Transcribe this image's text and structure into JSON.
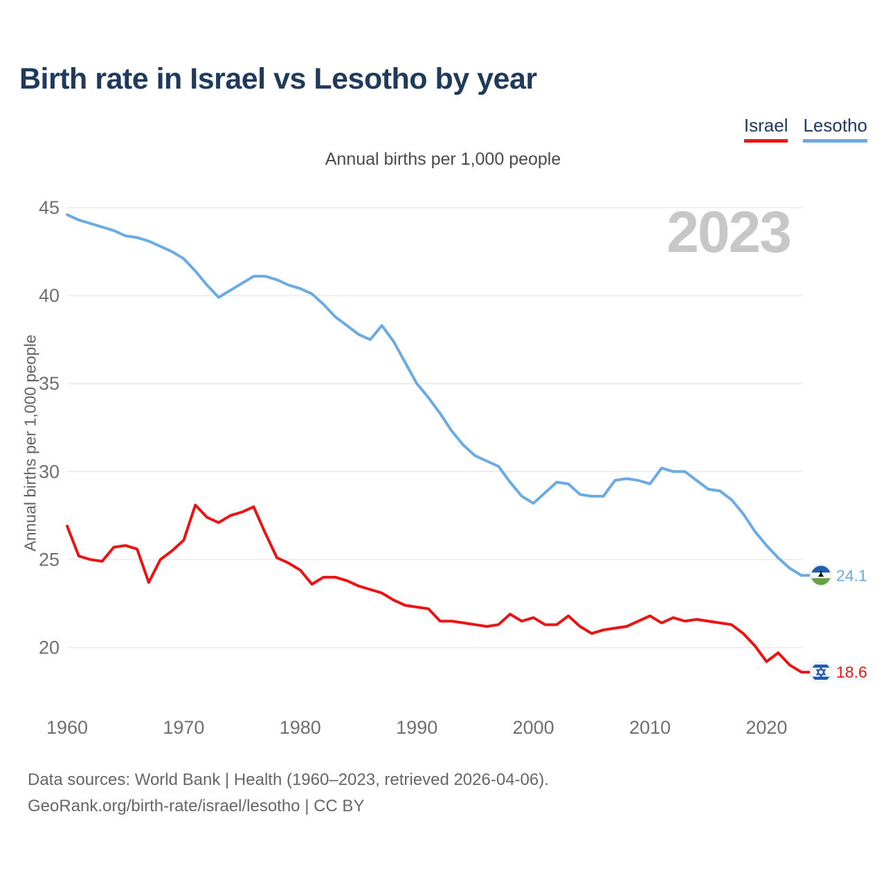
{
  "header": {
    "title": "Birth rate in Israel vs Lesotho by year"
  },
  "legend": {
    "items": [
      {
        "label": "Israel",
        "color": "#ec1313"
      },
      {
        "label": "Lesotho",
        "color": "#6aabe3"
      }
    ]
  },
  "subtitle": "Annual births per 1,000 people",
  "watermark": "2023",
  "chart_data": {
    "type": "line",
    "title": "Birth rate in Israel vs Lesotho by year",
    "xlabel": "",
    "ylabel": "Annual births per 1,000 people",
    "grid": "horizontal",
    "legend_position": "top-right",
    "yticks": [
      20,
      25,
      30,
      35,
      40,
      45
    ],
    "xticks": [
      1960,
      1970,
      1980,
      1990,
      2000,
      2010,
      2020
    ],
    "xlim": [
      1960,
      2023
    ],
    "ylim": [
      18,
      46
    ],
    "x": [
      1960,
      1961,
      1962,
      1963,
      1964,
      1965,
      1966,
      1967,
      1968,
      1969,
      1970,
      1971,
      1972,
      1973,
      1974,
      1975,
      1976,
      1977,
      1978,
      1979,
      1980,
      1981,
      1982,
      1983,
      1984,
      1985,
      1986,
      1987,
      1988,
      1989,
      1990,
      1991,
      1992,
      1993,
      1994,
      1995,
      1996,
      1997,
      1998,
      1999,
      2000,
      2001,
      2002,
      2003,
      2004,
      2005,
      2006,
      2007,
      2008,
      2009,
      2010,
      2011,
      2012,
      2013,
      2014,
      2015,
      2016,
      2017,
      2018,
      2019,
      2020,
      2021,
      2022,
      2023
    ],
    "series": [
      {
        "name": "Israel",
        "color": "#ec1313",
        "end_label": "18.6",
        "flag": "israel-flag-icon",
        "values": [
          26.9,
          25.2,
          25.0,
          24.9,
          25.7,
          25.8,
          25.6,
          23.7,
          25.0,
          25.5,
          26.1,
          28.1,
          27.4,
          27.1,
          27.5,
          27.7,
          28.0,
          26.5,
          25.1,
          24.8,
          24.4,
          23.6,
          24.0,
          24.0,
          23.8,
          23.5,
          23.3,
          23.1,
          22.7,
          22.4,
          22.3,
          22.2,
          21.5,
          21.5,
          21.4,
          21.3,
          21.2,
          21.3,
          21.9,
          21.5,
          21.7,
          21.3,
          21.3,
          21.8,
          21.2,
          20.8,
          21.0,
          21.1,
          21.2,
          21.5,
          21.8,
          21.4,
          21.7,
          21.5,
          21.6,
          21.5,
          21.4,
          21.3,
          20.8,
          20.1,
          19.2,
          19.7,
          19.0,
          18.6
        ]
      },
      {
        "name": "Lesotho",
        "color": "#6aabe3",
        "end_label": "24.1",
        "flag": "lesotho-flag-icon",
        "values": [
          44.6,
          44.3,
          44.1,
          43.9,
          43.7,
          43.4,
          43.3,
          43.1,
          42.8,
          42.5,
          42.1,
          41.4,
          40.6,
          39.9,
          40.3,
          40.7,
          41.1,
          41.1,
          40.9,
          40.6,
          40.4,
          40.1,
          39.5,
          38.8,
          38.3,
          37.8,
          37.5,
          38.3,
          37.4,
          36.2,
          35.0,
          34.2,
          33.3,
          32.3,
          31.5,
          30.9,
          30.6,
          30.3,
          29.4,
          28.6,
          28.2,
          28.8,
          29.4,
          29.3,
          28.7,
          28.6,
          28.6,
          29.5,
          29.6,
          29.5,
          29.3,
          30.2,
          30.0,
          30.0,
          29.5,
          29.0,
          28.9,
          28.4,
          27.6,
          26.6,
          25.8,
          25.1,
          24.5,
          24.1
        ]
      }
    ]
  },
  "footer": {
    "line1": "Data sources: World Bank | Health (1960–2023, retrieved 2026-04-06).",
    "line2": "GeoRank.org/birth-rate/israel/lesotho | CC BY"
  }
}
